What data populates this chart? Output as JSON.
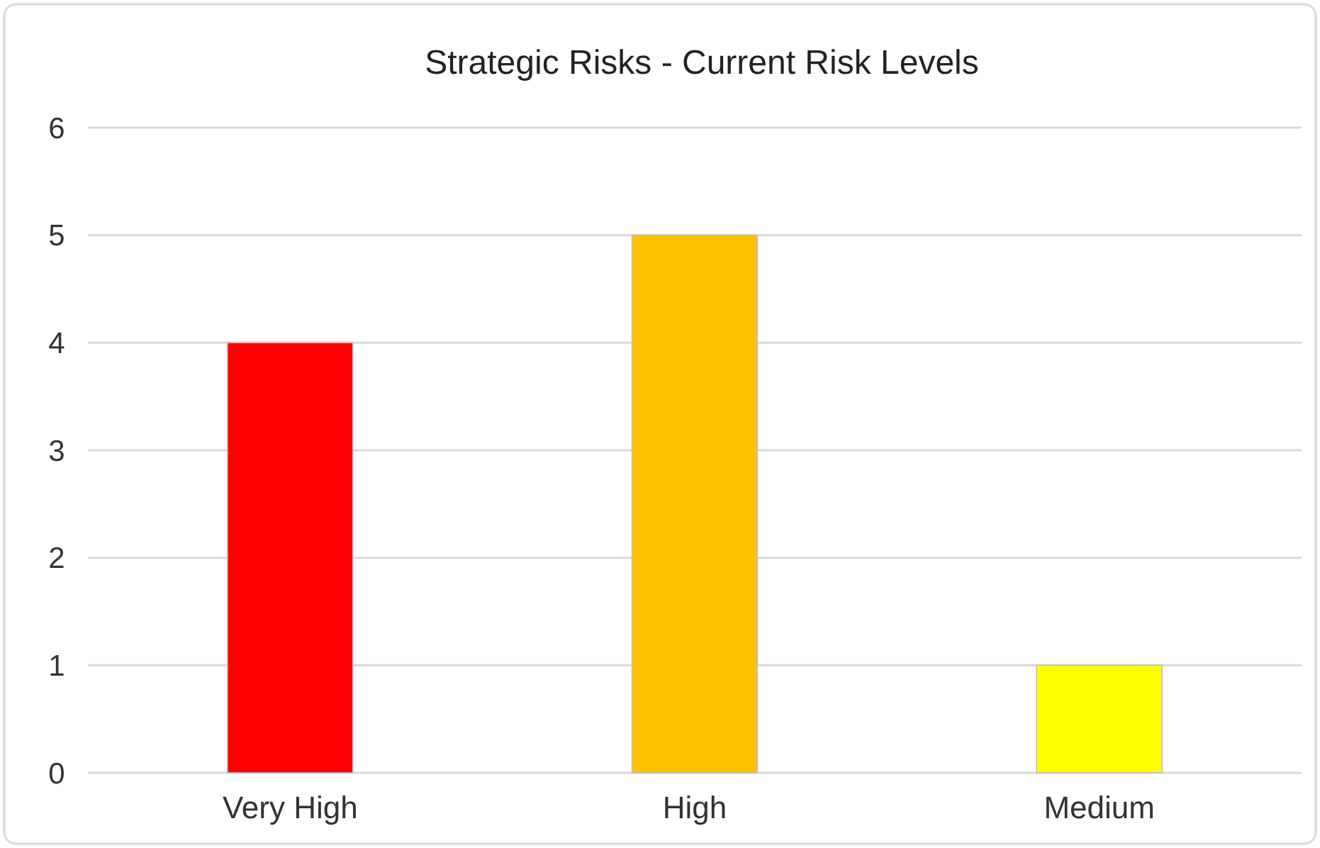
{
  "chart_data": {
    "type": "bar",
    "title": "Strategic Risks - Current Risk Levels",
    "categories": [
      "Very High",
      "High",
      "Medium"
    ],
    "values": [
      4,
      5,
      1
    ],
    "colors": [
      "#ff0000",
      "#ffc000",
      "#ffff00"
    ],
    "ylim": [
      0,
      6
    ],
    "yticks": [
      0,
      1,
      2,
      3,
      4,
      5,
      6
    ],
    "grid": "y"
  }
}
